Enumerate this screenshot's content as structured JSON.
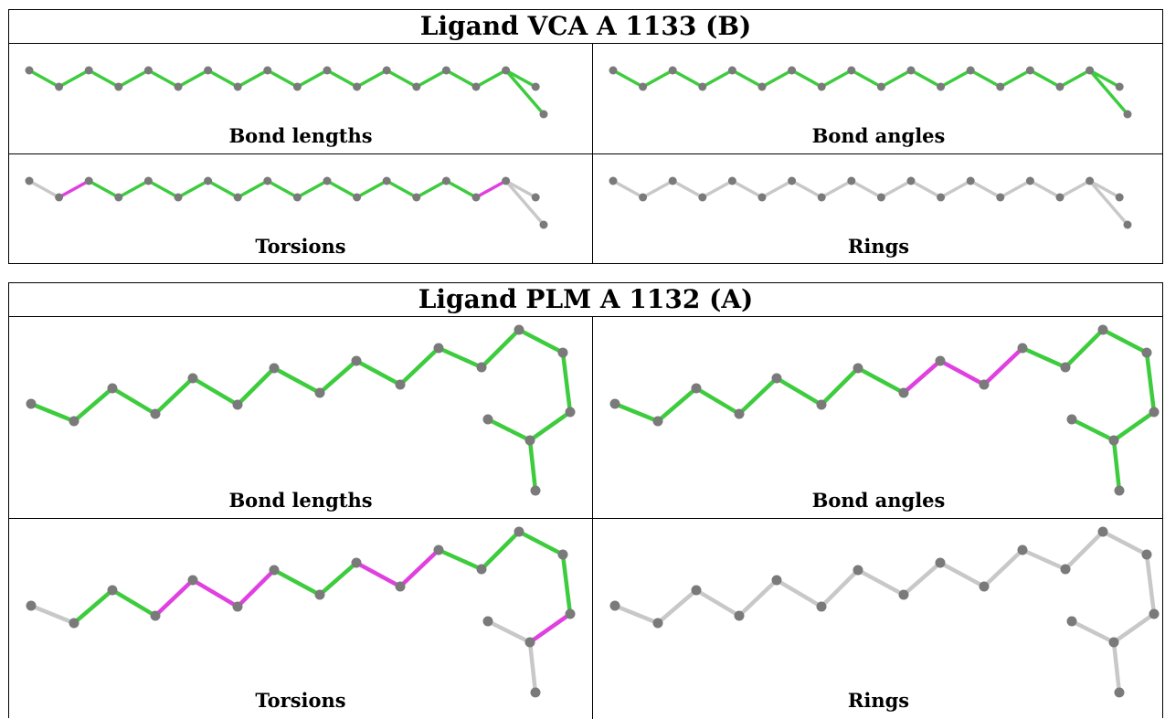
{
  "tables": [
    {
      "title": "Ligand VCA A 1133 (B)",
      "panels": [
        {
          "label": "Bond lengths"
        },
        {
          "label": "Bond angles"
        },
        {
          "label": "Torsions"
        },
        {
          "label": "Rings"
        }
      ]
    },
    {
      "title": "Ligand PLM A 1132 (A)",
      "panels": [
        {
          "label": "Bond lengths"
        },
        {
          "label": "Bond angles"
        },
        {
          "label": "Torsions"
        },
        {
          "label": "Rings"
        }
      ]
    }
  ],
  "colors": {
    "atom": "#7a7a7a",
    "bond_ok": "#3dcc3d",
    "bond_outlier": "#e040e0",
    "bond_neutral": "#c8c8c8"
  }
}
